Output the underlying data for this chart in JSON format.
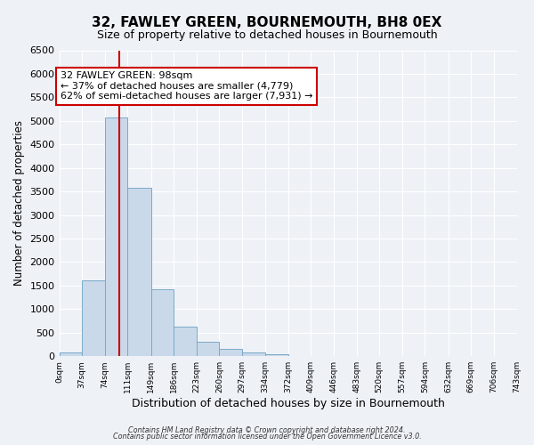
{
  "title": "32, FAWLEY GREEN, BOURNEMOUTH, BH8 0EX",
  "subtitle": "Size of property relative to detached houses in Bournemouth",
  "xlabel": "Distribution of detached houses by size in Bournemouth",
  "ylabel": "Number of detached properties",
  "bar_color": "#c9d9ea",
  "bar_edge_color": "#7aaac8",
  "background_color": "#eef2f7",
  "grid_color": "#ffffff",
  "ylim": [
    0,
    6500
  ],
  "yticks": [
    0,
    500,
    1000,
    1500,
    2000,
    2500,
    3000,
    3500,
    4000,
    4500,
    5000,
    5500,
    6000,
    6500
  ],
  "bin_edges": [
    0,
    37,
    74,
    111,
    149,
    186,
    223,
    260,
    297,
    334,
    372,
    409,
    446,
    483,
    520,
    557,
    594,
    632,
    669,
    706,
    743
  ],
  "bin_labels": [
    "0sqm",
    "37sqm",
    "74sqm",
    "111sqm",
    "149sqm",
    "186sqm",
    "223sqm",
    "260sqm",
    "297sqm",
    "334sqm",
    "372sqm",
    "409sqm",
    "446sqm",
    "483sqm",
    "520sqm",
    "557sqm",
    "594sqm",
    "632sqm",
    "669sqm",
    "706sqm",
    "743sqm"
  ],
  "bar_heights": [
    75,
    1620,
    5080,
    3580,
    1420,
    620,
    300,
    150,
    80,
    40,
    0,
    0,
    0,
    0,
    0,
    0,
    0,
    0,
    0,
    0
  ],
  "vline_x": 98,
  "vline_color": "#cc0000",
  "annotation_title": "32 FAWLEY GREEN: 98sqm",
  "annotation_line1": "← 37% of detached houses are smaller (4,779)",
  "annotation_line2": "62% of semi-detached houses are larger (7,931) →",
  "annotation_box_facecolor": "#ffffff",
  "annotation_box_edgecolor": "#cc0000",
  "footer1": "Contains HM Land Registry data © Crown copyright and database right 2024.",
  "footer2": "Contains public sector information licensed under the Open Government Licence v3.0."
}
